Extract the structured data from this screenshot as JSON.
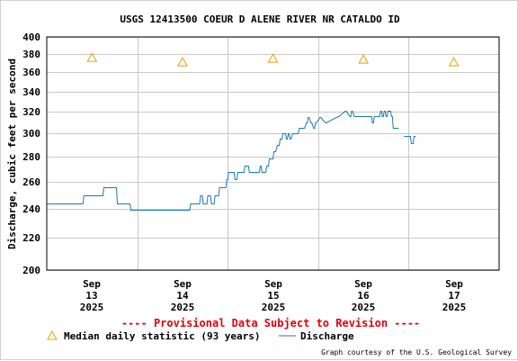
{
  "header": {
    "title": "USGS 12413500 COEUR D ALENE RIVER NR CATALDO ID"
  },
  "footer": {
    "provisional": "---- Provisional Data Subject to Revision ----",
    "credit": "Graph courtesy of the U.S. Geological Survey"
  },
  "legend": {
    "median_label": "Median daily statistic (93 years)",
    "discharge_label": "Discharge"
  },
  "colors": {
    "discharge": "#1a7ab0",
    "median": "#e8a000",
    "provisional": "#e0000a",
    "grid": "#c8c8c8"
  },
  "chart_data": {
    "type": "line",
    "title": "USGS 12413500 COEUR D ALENE RIVER NR CATALDO ID",
    "ylabel": "Discharge, cubic feet per second",
    "xlabel": "",
    "yscale": "log",
    "ylim": [
      200,
      400
    ],
    "xlim": [
      12.5,
      17.5
    ],
    "grid": true,
    "legend_position": "bottom",
    "y_ticks": [
      200,
      220,
      240,
      260,
      280,
      300,
      320,
      340,
      360,
      380,
      400
    ],
    "x_ticks": [
      {
        "x": 13,
        "month": "Sep",
        "day": "13",
        "year": "2025"
      },
      {
        "x": 14,
        "month": "Sep",
        "day": "14",
        "year": "2025"
      },
      {
        "x": 15,
        "month": "Sep",
        "day": "15",
        "year": "2025"
      },
      {
        "x": 16,
        "month": "Sep",
        "day": "16",
        "year": "2025"
      },
      {
        "x": 17,
        "month": "Sep",
        "day": "17",
        "year": "2025"
      }
    ],
    "series": [
      {
        "name": "Median daily statistic (93 years)",
        "kind": "marker",
        "marker": "triangle",
        "x": [
          13,
          14,
          15,
          16,
          17
        ],
        "y": [
          376,
          371,
          375,
          374,
          371
        ]
      },
      {
        "name": "Discharge",
        "kind": "line",
        "segments": [
          {
            "x": [
              12.5,
              12.9,
              12.91,
              13.12,
              13.13,
              13.27,
              13.28,
              13.42,
              13.43,
              13.93,
              14.08,
              14.09,
              14.19,
              14.2,
              14.22,
              14.23,
              14.27,
              14.28,
              14.31,
              14.32,
              14.35,
              14.36,
              14.4,
              14.41,
              14.48,
              14.49,
              14.5,
              14.51,
              14.57,
              14.58,
              14.6,
              14.61,
              14.68,
              14.69,
              14.73,
              14.74,
              14.85,
              14.86,
              14.87,
              14.88,
              14.92,
              14.93,
              14.95,
              14.96,
              15.0,
              15.01,
              15.03,
              15.05,
              15.07,
              15.08,
              15.1,
              15.11,
              15.14,
              15.15,
              15.16,
              15.17,
              15.18,
              15.19,
              15.2,
              15.22,
              15.28,
              15.29,
              15.35,
              15.37,
              15.38,
              15.39,
              15.4,
              15.42,
              15.43,
              15.45,
              15.46,
              15.47,
              15.48,
              15.52,
              15.53,
              15.58,
              15.59,
              15.7,
              15.71,
              15.72,
              15.73,
              15.8,
              15.81,
              15.85,
              15.86,
              15.87,
              15.88,
              15.9,
              15.91,
              16.09,
              16.1,
              16.11,
              16.12,
              16.18,
              16.19,
              16.2,
              16.21,
              16.22,
              16.23,
              16.24,
              16.25,
              16.26,
              16.27,
              16.3,
              16.31,
              16.32,
              16.33,
              16.34,
              16.35,
              16.39
            ],
            "y": [
              244,
              244,
              250,
              250,
              256,
              256,
              244,
              244,
              239,
              239,
              239,
              244,
              244,
              250,
              250,
              244,
              244,
              250,
              250,
              244,
              244,
              250,
              250,
              256,
              256,
              262,
              262,
              268,
              268,
              262,
              262,
              268,
              268,
              273,
              273,
              268,
              268,
              273,
              273,
              268,
              268,
              273,
              273,
              279,
              279,
              285,
              285,
              290,
              290,
              296,
              296,
              300,
              300,
              296,
              296,
              300,
              300,
              296,
              296,
              300,
              300,
              305,
              305,
              310,
              310,
              315,
              315,
              310,
              310,
              305,
              305,
              310,
              310,
              315,
              315,
              310,
              310,
              315,
              315,
              316,
              316,
              321,
              321,
              316,
              316,
              321,
              321,
              316,
              316,
              316,
              310,
              310,
              316,
              316,
              321,
              321,
              316,
              316,
              321,
              321,
              316,
              316,
              321,
              321,
              316,
              316,
              305,
              305,
              305,
              305
            ]
          },
          {
            "x": [
              16.45,
              16.52,
              16.53,
              16.55,
              16.56,
              16.58
            ],
            "y": [
              298,
              298,
              292,
              292,
              298,
              298
            ]
          }
        ]
      }
    ]
  }
}
